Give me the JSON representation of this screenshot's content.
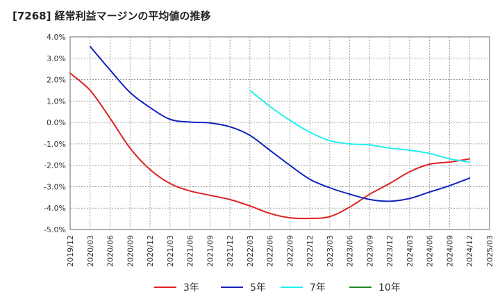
{
  "chart_data": {
    "type": "line",
    "title": "[7268]  経常利益マージンの平均値の推移",
    "xlabel": "",
    "ylabel": "",
    "ylim": [
      -5.0,
      4.0
    ],
    "yticks": [
      "4.0%",
      "3.0%",
      "2.0%",
      "1.0%",
      "0.0%",
      "-1.0%",
      "-2.0%",
      "-3.0%",
      "-4.0%",
      "-5.0%"
    ],
    "x_ticks": [
      "2019/12",
      "2020/03",
      "2020/06",
      "2020/09",
      "2020/12",
      "2021/03",
      "2021/06",
      "2021/09",
      "2021/12",
      "2022/03",
      "2022/06",
      "2022/09",
      "2022/12",
      "2023/03",
      "2023/06",
      "2023/09",
      "2023/12",
      "2024/03",
      "2024/06",
      "2024/09",
      "2024/12",
      "2025/03"
    ],
    "grid": true,
    "legend_position": "bottom",
    "series": [
      {
        "name": "3年",
        "color": "#dd2222",
        "points": [
          [
            "2019/12",
            2.3
          ],
          [
            "2020/03",
            1.5
          ],
          [
            "2020/06",
            0.2
          ],
          [
            "2020/09",
            -1.2
          ],
          [
            "2020/12",
            -2.2
          ],
          [
            "2021/03",
            -2.85
          ],
          [
            "2021/06",
            -3.2
          ],
          [
            "2021/09",
            -3.4
          ],
          [
            "2021/12",
            -3.6
          ],
          [
            "2022/03",
            -3.9
          ],
          [
            "2022/06",
            -4.25
          ],
          [
            "2022/09",
            -4.45
          ],
          [
            "2022/12",
            -4.48
          ],
          [
            "2023/03",
            -4.4
          ],
          [
            "2023/06",
            -3.95
          ],
          [
            "2023/09",
            -3.35
          ],
          [
            "2023/12",
            -2.85
          ],
          [
            "2024/03",
            -2.3
          ],
          [
            "2024/06",
            -1.95
          ],
          [
            "2024/09",
            -1.85
          ],
          [
            "2024/12",
            -1.7
          ]
        ]
      },
      {
        "name": "5年",
        "color": "#1122bb",
        "points": [
          [
            "2020/03",
            3.55
          ],
          [
            "2020/06",
            2.45
          ],
          [
            "2020/09",
            1.4
          ],
          [
            "2020/12",
            0.7
          ],
          [
            "2021/03",
            0.15
          ],
          [
            "2021/06",
            0.02
          ],
          [
            "2021/09",
            -0.02
          ],
          [
            "2021/12",
            -0.2
          ],
          [
            "2022/03",
            -0.6
          ],
          [
            "2022/06",
            -1.3
          ],
          [
            "2022/09",
            -2.0
          ],
          [
            "2022/12",
            -2.65
          ],
          [
            "2023/03",
            -3.05
          ],
          [
            "2023/06",
            -3.35
          ],
          [
            "2023/09",
            -3.6
          ],
          [
            "2023/12",
            -3.68
          ],
          [
            "2024/03",
            -3.55
          ],
          [
            "2024/06",
            -3.25
          ],
          [
            "2024/09",
            -2.95
          ],
          [
            "2024/12",
            -2.6
          ]
        ]
      },
      {
        "name": "7年",
        "color": "#22eeee",
        "points": [
          [
            "2022/03",
            1.5
          ],
          [
            "2022/06",
            0.75
          ],
          [
            "2022/09",
            0.1
          ],
          [
            "2022/12",
            -0.45
          ],
          [
            "2023/03",
            -0.85
          ],
          [
            "2023/06",
            -1.0
          ],
          [
            "2023/09",
            -1.05
          ],
          [
            "2023/12",
            -1.2
          ],
          [
            "2024/03",
            -1.3
          ],
          [
            "2024/06",
            -1.45
          ],
          [
            "2024/09",
            -1.7
          ],
          [
            "2024/12",
            -1.85
          ]
        ]
      },
      {
        "name": "10年",
        "color": "#228822",
        "points": []
      }
    ]
  }
}
